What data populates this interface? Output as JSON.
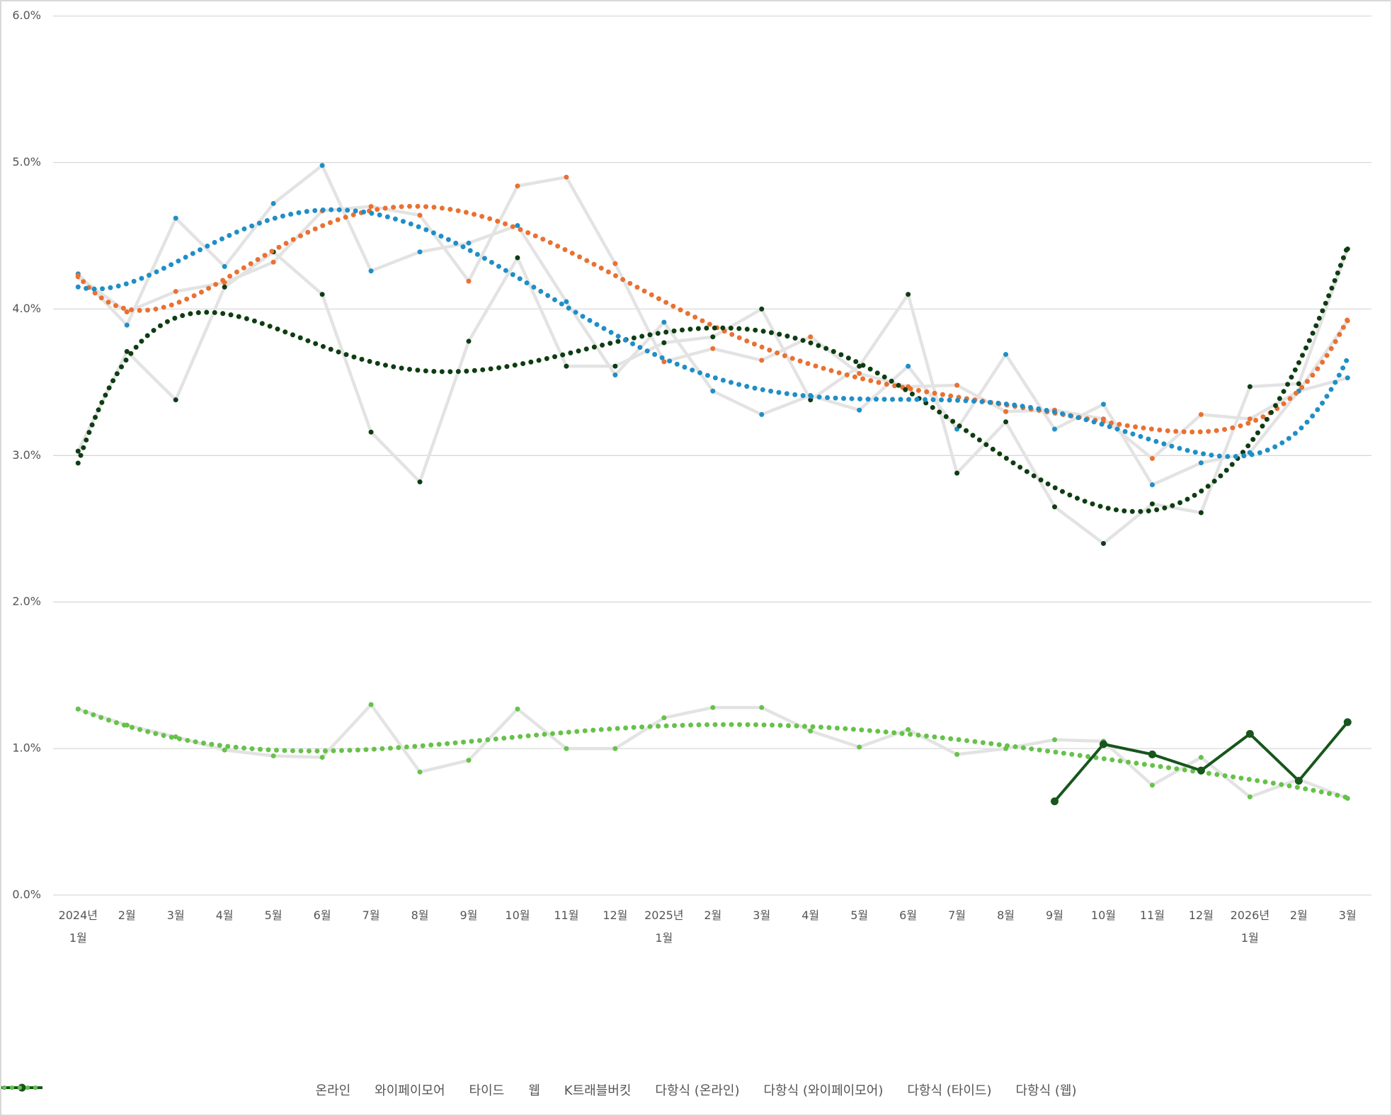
{
  "chart_data": {
    "type": "line",
    "categories": [
      "2024년\n1월",
      "2월",
      "3월",
      "4월",
      "5월",
      "6월",
      "7월",
      "8월",
      "9월",
      "10월",
      "11월",
      "12월",
      "2025년\n1월",
      "2월",
      "3월",
      "4월",
      "5월",
      "6월",
      "7월",
      "8월",
      "9월",
      "10월",
      "11월",
      "12월",
      "2026년\n1월",
      "2월",
      "3월"
    ],
    "ylim": [
      0,
      6
    ],
    "yticks": [
      {
        "value": 0,
        "label": "0.0%"
      },
      {
        "value": 1,
        "label": "1.0%"
      },
      {
        "value": 2,
        "label": "2.0%"
      },
      {
        "value": 3,
        "label": "3.0%"
      },
      {
        "value": 4,
        "label": "4.0%"
      },
      {
        "value": 5,
        "label": "5.0%"
      },
      {
        "value": 6,
        "label": "6.0%"
      }
    ],
    "grid": true,
    "legend": "bottom",
    "series": [
      {
        "name": "온라인",
        "color": "#e97132",
        "line_color": "#e3e3e3",
        "values": [
          4.22,
          3.98,
          4.12,
          4.18,
          4.32,
          4.67,
          4.7,
          4.64,
          4.19,
          4.84,
          4.9,
          4.31,
          3.64,
          3.73,
          3.65,
          3.81,
          3.56,
          3.47,
          3.48,
          3.3,
          3.31,
          3.25,
          2.98,
          3.28,
          3.25,
          3.44,
          3.92
        ],
        "trendline": {
          "type": "polynomial",
          "order": 6,
          "name": "다항식 (온라인)"
        }
      },
      {
        "name": "와이페이모어",
        "color": "#0e3d12",
        "line_color": "#e3e3e3",
        "values": [
          3.03,
          3.71,
          3.38,
          4.15,
          4.39,
          4.1,
          3.16,
          2.82,
          3.78,
          4.35,
          3.61,
          3.61,
          3.77,
          3.81,
          4.0,
          3.38,
          3.61,
          4.1,
          2.88,
          3.23,
          2.65,
          2.4,
          2.67,
          2.61,
          3.47,
          3.49,
          4.41
        ],
        "trendline": {
          "type": "polynomial",
          "order": 6,
          "name": "다항식 (와이페이모어)"
        }
      },
      {
        "name": "타이드",
        "color": "#1f8fc6",
        "line_color": "#e3e3e3",
        "values": [
          4.24,
          3.89,
          4.62,
          4.29,
          4.72,
          4.98,
          4.26,
          4.39,
          4.45,
          4.57,
          4.05,
          3.55,
          3.91,
          3.44,
          3.28,
          3.41,
          3.31,
          3.61,
          3.18,
          3.69,
          3.18,
          3.35,
          2.8,
          2.95,
          3.02,
          3.44,
          3.53
        ],
        "trendline": {
          "type": "polynomial",
          "order": 6,
          "name": "다항식 (타이드)"
        }
      },
      {
        "name": "웹",
        "color": "#66c24a",
        "line_color": "#e3e3e3",
        "values": [
          1.27,
          1.16,
          1.08,
          0.99,
          0.95,
          0.94,
          1.3,
          0.84,
          0.92,
          1.27,
          1.0,
          1.0,
          1.21,
          1.28,
          1.28,
          1.12,
          1.01,
          1.13,
          0.96,
          1.0,
          1.06,
          1.05,
          0.75,
          0.94,
          0.67,
          0.79,
          0.66
        ],
        "trendline": {
          "type": "polynomial",
          "order": 6,
          "name": "다항식 (웹)"
        }
      },
      {
        "name": "K트래블버킷",
        "color": "#17561c",
        "line_color": "#17561c",
        "values": [
          null,
          null,
          null,
          null,
          null,
          null,
          null,
          null,
          null,
          null,
          null,
          null,
          null,
          null,
          null,
          null,
          null,
          null,
          null,
          null,
          0.64,
          1.03,
          0.96,
          0.85,
          1.1,
          0.78,
          1.18
        ]
      }
    ]
  }
}
